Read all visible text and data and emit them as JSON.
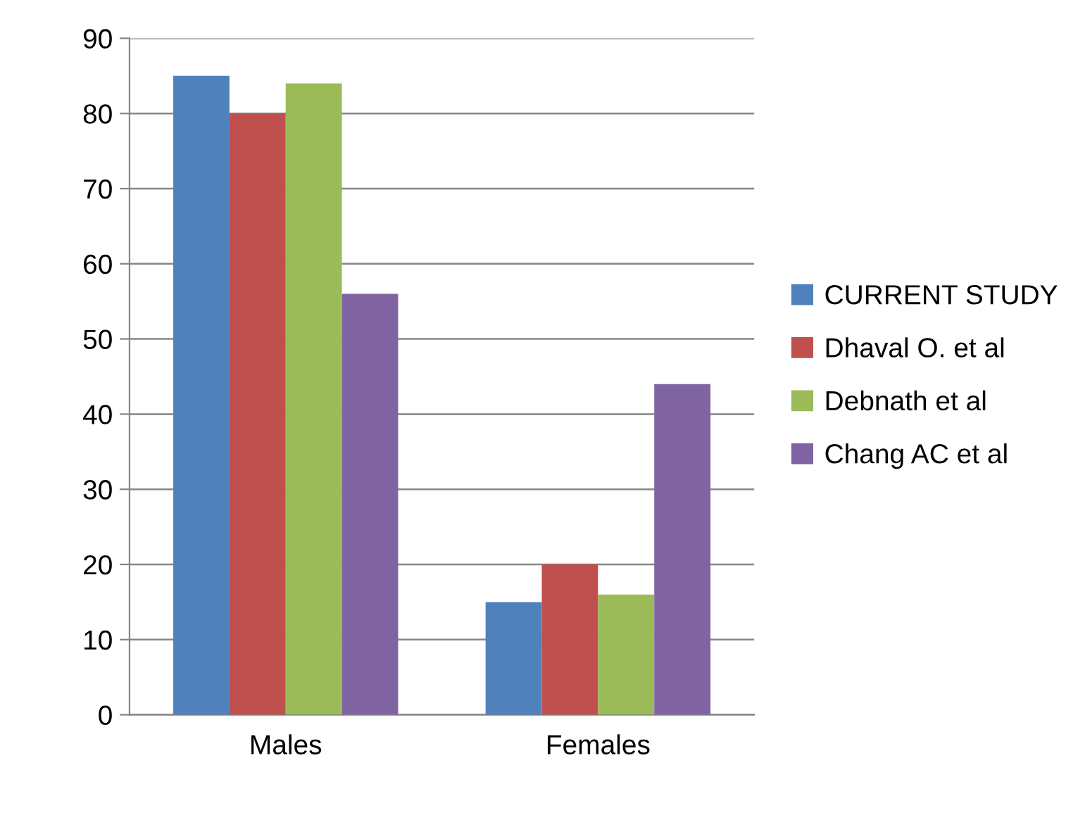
{
  "chart_data": {
    "type": "bar",
    "categories": [
      "Males",
      "Females"
    ],
    "series": [
      {
        "name": "CURRENT STUDY",
        "color": "#4f81bd",
        "values": [
          85,
          15
        ]
      },
      {
        "name": "Dhaval O. et al",
        "color": "#c0504d",
        "values": [
          80,
          20
        ]
      },
      {
        "name": "Debnath et al",
        "color": "#9bbb59",
        "values": [
          84,
          16
        ]
      },
      {
        "name": "Chang AC et al",
        "color": "#8064a2",
        "values": [
          56,
          44
        ]
      }
    ],
    "ylim": [
      0,
      90
    ],
    "yticks": [
      0,
      10,
      20,
      30,
      40,
      50,
      60,
      70,
      80,
      90
    ],
    "grid": "y",
    "legend": "right"
  }
}
